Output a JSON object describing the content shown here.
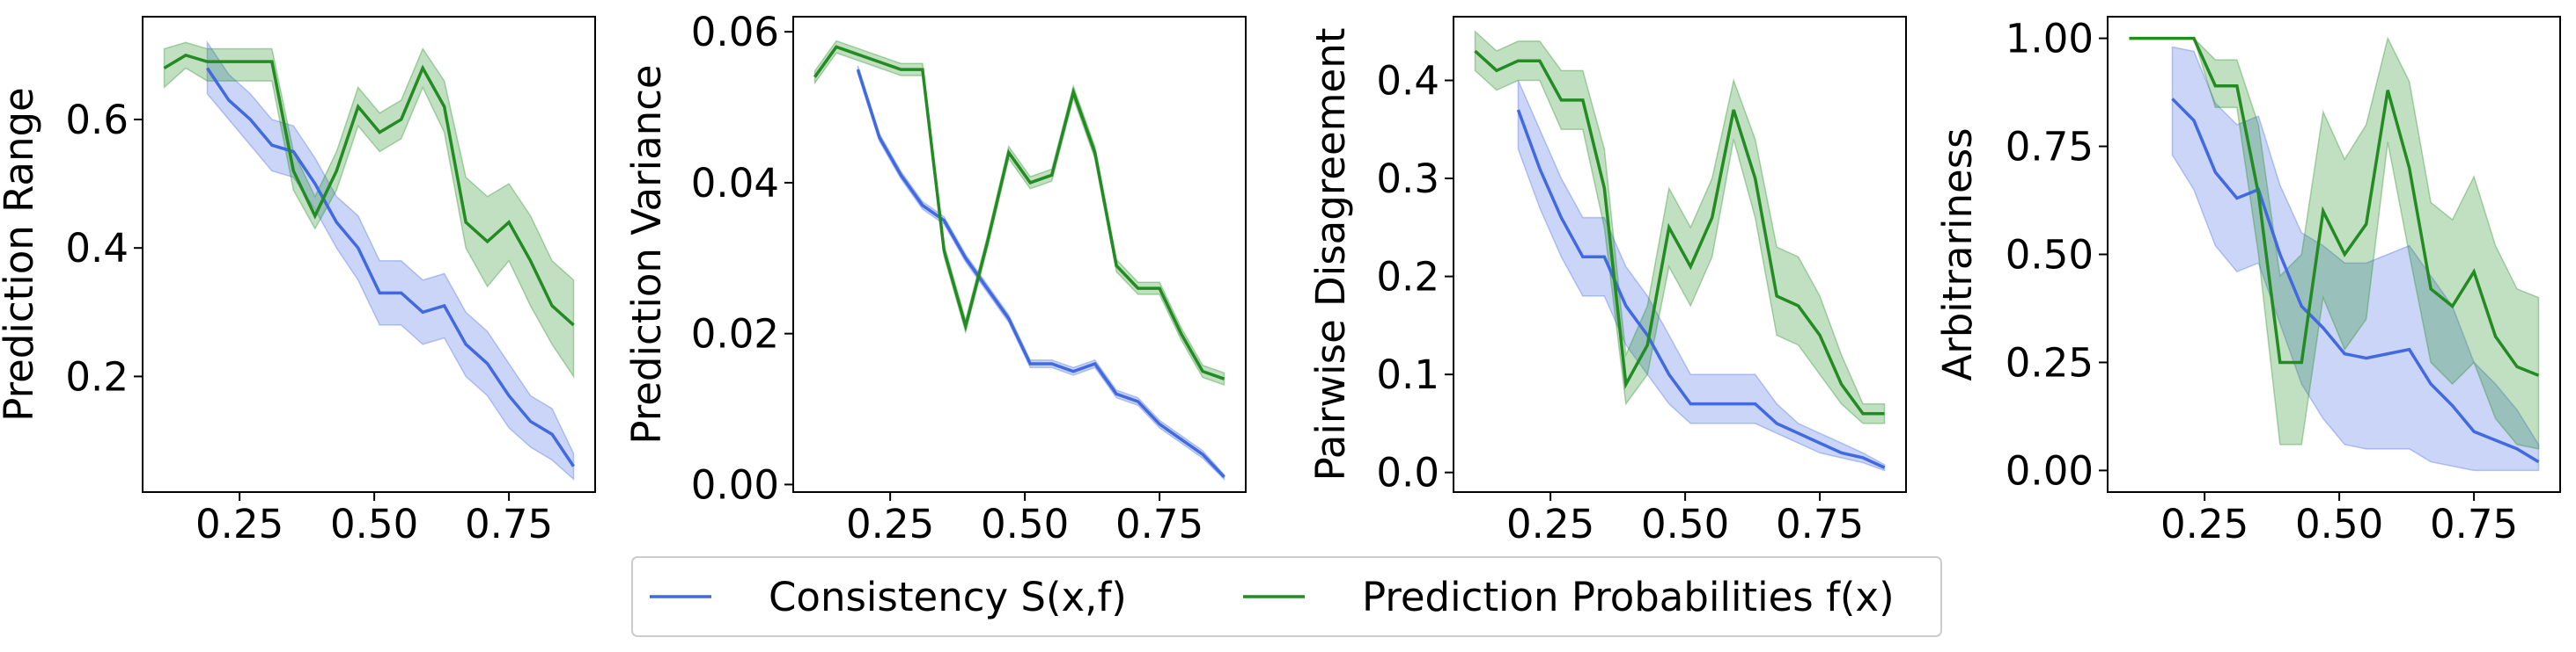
{
  "chart_data": [
    {
      "type": "line",
      "ylabel": "Prediction Range",
      "x": [
        0.11,
        0.15,
        0.19,
        0.23,
        0.27,
        0.31,
        0.35,
        0.39,
        0.43,
        0.47,
        0.51,
        0.55,
        0.59,
        0.63,
        0.67,
        0.71,
        0.75,
        0.79,
        0.83,
        0.87
      ],
      "xlim": [
        0.07,
        0.91
      ],
      "xticks": [
        0.25,
        {
          "value": 0.5,
          "label": "0.50"
        },
        0.75
      ],
      "ylim": [
        0.02,
        0.76
      ],
      "yticks": [
        0.2,
        0.4,
        0.6
      ],
      "series": [
        {
          "color": "#4169e1",
          "values": [
            null,
            null,
            0.68,
            0.63,
            0.6,
            0.56,
            0.55,
            0.5,
            0.44,
            0.4,
            0.33,
            0.33,
            0.3,
            0.31,
            0.25,
            0.22,
            0.17,
            0.13,
            0.11,
            0.06
          ],
          "lower": [
            null,
            null,
            0.64,
            0.6,
            0.56,
            0.52,
            0.51,
            0.46,
            0.4,
            0.35,
            0.28,
            0.28,
            0.25,
            0.26,
            0.2,
            0.17,
            0.12,
            0.09,
            0.07,
            0.04
          ],
          "upper": [
            null,
            null,
            0.72,
            0.67,
            0.64,
            0.6,
            0.59,
            0.54,
            0.48,
            0.45,
            0.38,
            0.38,
            0.35,
            0.36,
            0.3,
            0.27,
            0.22,
            0.17,
            0.15,
            0.08
          ]
        },
        {
          "color": "#228b22",
          "values": [
            0.68,
            0.7,
            0.69,
            0.69,
            0.69,
            0.69,
            0.52,
            0.45,
            0.52,
            0.62,
            0.58,
            0.6,
            0.68,
            0.62,
            0.44,
            0.41,
            0.44,
            0.38,
            0.31,
            0.28
          ],
          "lower": [
            0.65,
            0.68,
            0.66,
            0.66,
            0.66,
            0.66,
            0.49,
            0.43,
            0.49,
            0.59,
            0.55,
            0.57,
            0.65,
            0.58,
            0.4,
            0.34,
            0.38,
            0.31,
            0.25,
            0.2
          ],
          "upper": [
            0.71,
            0.72,
            0.71,
            0.71,
            0.71,
            0.71,
            0.55,
            0.48,
            0.55,
            0.65,
            0.61,
            0.63,
            0.71,
            0.66,
            0.51,
            0.48,
            0.5,
            0.45,
            0.38,
            0.35
          ]
        }
      ]
    },
    {
      "type": "line",
      "ylabel": "Prediction Variance",
      "x": [
        0.11,
        0.15,
        0.19,
        0.23,
        0.27,
        0.31,
        0.35,
        0.39,
        0.43,
        0.47,
        0.51,
        0.55,
        0.59,
        0.63,
        0.67,
        0.71,
        0.75,
        0.79,
        0.83,
        0.87
      ],
      "xlim": [
        0.07,
        0.91
      ],
      "xticks": [
        0.25,
        {
          "value": 0.5,
          "label": "0.50"
        },
        0.75
      ],
      "ylim": [
        -0.001,
        0.062
      ],
      "yticks": [
        {
          "value": 0,
          "label": "0.00"
        },
        0.02,
        0.04,
        0.06
      ],
      "series": [
        {
          "color": "#4169e1",
          "values": [
            null,
            null,
            0.055,
            0.046,
            0.041,
            0.037,
            0.035,
            0.03,
            0.026,
            0.022,
            0.016,
            0.016,
            0.015,
            0.016,
            0.012,
            0.011,
            0.008,
            0.006,
            0.004,
            0.001
          ],
          "lower": [
            null,
            null,
            0.0545,
            0.0455,
            0.0405,
            0.0365,
            0.0345,
            0.0295,
            0.0255,
            0.0215,
            0.0155,
            0.0155,
            0.0145,
            0.0155,
            0.0115,
            0.0105,
            0.0075,
            0.0055,
            0.0035,
            0.0007
          ],
          "upper": [
            null,
            null,
            0.0555,
            0.0465,
            0.0415,
            0.0375,
            0.0355,
            0.0305,
            0.0265,
            0.0225,
            0.0165,
            0.0165,
            0.0155,
            0.0165,
            0.0125,
            0.0115,
            0.0085,
            0.0065,
            0.0045,
            0.0013
          ]
        },
        {
          "color": "#228b22",
          "values": [
            0.054,
            0.058,
            0.057,
            0.056,
            0.055,
            0.055,
            0.031,
            0.021,
            0.032,
            0.044,
            0.04,
            0.041,
            0.052,
            0.044,
            0.029,
            0.026,
            0.026,
            0.02,
            0.015,
            0.014
          ],
          "lower": [
            0.0532,
            0.0572,
            0.0562,
            0.0552,
            0.0542,
            0.0542,
            0.0302,
            0.0202,
            0.0312,
            0.0432,
            0.0392,
            0.0402,
            0.0512,
            0.0432,
            0.0282,
            0.0252,
            0.0252,
            0.0192,
            0.0142,
            0.0132
          ],
          "upper": [
            0.0548,
            0.0588,
            0.0578,
            0.0568,
            0.0558,
            0.0558,
            0.0318,
            0.0218,
            0.0328,
            0.0448,
            0.0408,
            0.0418,
            0.0528,
            0.0448,
            0.0298,
            0.0268,
            0.0268,
            0.0208,
            0.0158,
            0.0148
          ]
        }
      ]
    },
    {
      "type": "line",
      "ylabel": "Pairwise Disagreement",
      "x": [
        0.11,
        0.15,
        0.19,
        0.23,
        0.27,
        0.31,
        0.35,
        0.39,
        0.43,
        0.47,
        0.51,
        0.55,
        0.59,
        0.63,
        0.67,
        0.71,
        0.75,
        0.79,
        0.83,
        0.87
      ],
      "xlim": [
        0.07,
        0.91
      ],
      "xticks": [
        0.25,
        {
          "value": 0.5,
          "label": "0.50"
        },
        0.75
      ],
      "ylim": [
        -0.02,
        0.465
      ],
      "yticks": [
        {
          "value": 0,
          "label": "0.0"
        },
        0.1,
        0.2,
        0.3,
        0.4
      ],
      "series": [
        {
          "color": "#4169e1",
          "values": [
            null,
            null,
            0.37,
            0.31,
            0.26,
            0.22,
            0.22,
            0.17,
            0.14,
            0.1,
            0.07,
            0.07,
            0.07,
            0.07,
            0.05,
            0.04,
            0.03,
            0.02,
            0.015,
            0.005
          ],
          "lower": [
            null,
            null,
            0.33,
            0.27,
            0.22,
            0.18,
            0.18,
            0.13,
            0.1,
            0.07,
            0.05,
            0.05,
            0.05,
            0.05,
            0.04,
            0.03,
            0.02,
            0.015,
            0.01,
            0.002
          ],
          "upper": [
            null,
            null,
            0.4,
            0.35,
            0.3,
            0.26,
            0.26,
            0.21,
            0.18,
            0.14,
            0.1,
            0.1,
            0.1,
            0.1,
            0.07,
            0.05,
            0.04,
            0.03,
            0.02,
            0.008
          ]
        },
        {
          "color": "#228b22",
          "values": [
            0.43,
            0.41,
            0.42,
            0.42,
            0.38,
            0.38,
            0.29,
            0.09,
            0.13,
            0.25,
            0.21,
            0.26,
            0.37,
            0.3,
            0.18,
            0.17,
            0.14,
            0.09,
            0.06,
            0.06
          ],
          "lower": [
            0.41,
            0.39,
            0.4,
            0.4,
            0.35,
            0.35,
            0.25,
            0.07,
            0.1,
            0.21,
            0.17,
            0.22,
            0.34,
            0.26,
            0.14,
            0.13,
            0.1,
            0.07,
            0.05,
            0.05
          ],
          "upper": [
            0.45,
            0.43,
            0.44,
            0.44,
            0.41,
            0.41,
            0.33,
            0.12,
            0.17,
            0.29,
            0.25,
            0.3,
            0.4,
            0.34,
            0.23,
            0.22,
            0.18,
            0.12,
            0.07,
            0.07
          ]
        }
      ]
    },
    {
      "type": "line",
      "ylabel": "Arbitrariness",
      "x": [
        0.11,
        0.15,
        0.19,
        0.23,
        0.27,
        0.31,
        0.35,
        0.39,
        0.43,
        0.47,
        0.51,
        0.55,
        0.59,
        0.63,
        0.67,
        0.71,
        0.75,
        0.79,
        0.83,
        0.87
      ],
      "xlim": [
        0.07,
        0.91
      ],
      "xticks": [
        0.25,
        {
          "value": 0.5,
          "label": "0.50"
        },
        0.75
      ],
      "ylim": [
        -0.05,
        1.05
      ],
      "yticks": [
        {
          "value": 0,
          "label": "0.00"
        },
        0.25,
        {
          "value": 0.5,
          "label": "0.50"
        },
        0.75,
        {
          "value": 1,
          "label": "1.00"
        }
      ],
      "series": [
        {
          "color": "#4169e1",
          "values": [
            null,
            null,
            0.86,
            0.81,
            0.69,
            0.63,
            0.65,
            0.5,
            0.38,
            0.33,
            0.27,
            0.26,
            0.27,
            0.28,
            0.2,
            0.15,
            0.09,
            0.07,
            0.05,
            0.02
          ],
          "lower": [
            null,
            null,
            0.73,
            0.65,
            0.52,
            0.46,
            0.48,
            0.34,
            0.2,
            0.12,
            0.06,
            0.05,
            0.05,
            0.05,
            0.02,
            0.01,
            0.0,
            0.0,
            0.0,
            0.0
          ],
          "upper": [
            null,
            null,
            0.98,
            0.97,
            0.85,
            0.8,
            0.82,
            0.66,
            0.55,
            0.52,
            0.48,
            0.48,
            0.5,
            0.52,
            0.45,
            0.38,
            0.25,
            0.2,
            0.14,
            0.06
          ]
        },
        {
          "color": "#228b22",
          "values": [
            1.0,
            1.0,
            1.0,
            1.0,
            0.89,
            0.89,
            0.64,
            0.25,
            0.25,
            0.6,
            0.5,
            0.57,
            0.88,
            0.7,
            0.42,
            0.38,
            0.46,
            0.31,
            0.24,
            0.22
          ],
          "lower": [
            1.0,
            1.0,
            1.0,
            1.0,
            0.84,
            0.84,
            0.5,
            0.06,
            0.06,
            0.4,
            0.28,
            0.35,
            0.76,
            0.5,
            0.25,
            0.2,
            0.25,
            0.12,
            0.06,
            0.05
          ],
          "upper": [
            1.0,
            1.0,
            1.0,
            1.0,
            0.95,
            0.95,
            0.8,
            0.45,
            0.5,
            0.83,
            0.72,
            0.8,
            1.0,
            0.9,
            0.62,
            0.58,
            0.68,
            0.52,
            0.42,
            0.4
          ]
        }
      ]
    }
  ],
  "legend": [
    "Consistency S(x,f)",
    "Prediction Probabilities f(x)"
  ]
}
